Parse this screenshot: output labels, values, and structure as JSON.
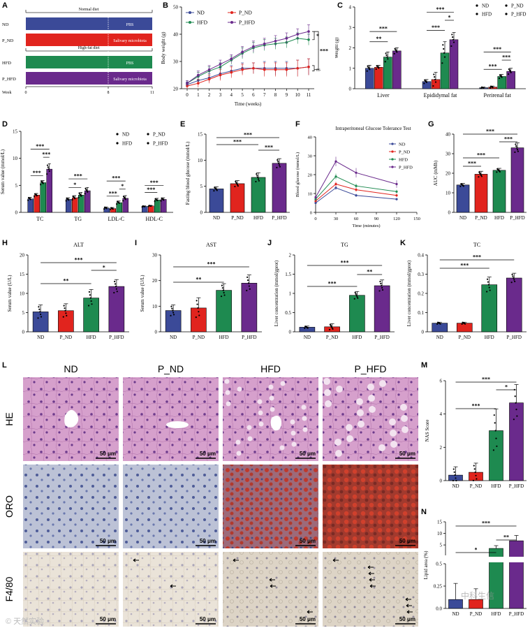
{
  "colors": {
    "ND": "#3B4A98",
    "P_ND": "#E1241E",
    "HFD": "#1E8A50",
    "P_HFD": "#6A2A8C",
    "HE_bg": "#D9A3CF",
    "ORO_bg": "#B7BCD0",
    "F480_bg": "#E9E1D6"
  },
  "groups": [
    "ND",
    "P_ND",
    "HFD",
    "P_HFD"
  ],
  "panelA": {
    "letter": "A",
    "normal_diet": "Normal diet",
    "high_fat_diet": "High-fat diet",
    "rows": [
      {
        "label": "ND",
        "text": "PBS"
      },
      {
        "label": "P_ND",
        "text": "Salivary microbiota"
      },
      {
        "label": "HFD",
        "text": "PBS"
      },
      {
        "label": "P_HFD",
        "text": "Salivary microbiota"
      }
    ],
    "week_label": "Week",
    "week_ticks": [
      "0",
      "8",
      "11"
    ]
  },
  "histology": {
    "letter": "L",
    "columns": [
      "ND",
      "P_ND",
      "HFD",
      "P_HFD"
    ],
    "rows": [
      "HE",
      "ORO",
      "F4/80"
    ],
    "scale_bar": "50 μm"
  },
  "watermarks": [
    "© 天然实验",
    "中科生信"
  ],
  "chart_data": [
    {
      "id": "B",
      "type": "line",
      "ylabel": "Body weight (g)",
      "xlabel": "Time (weeks)",
      "x": [
        0,
        1,
        2,
        3,
        4,
        5,
        6,
        7,
        8,
        9,
        10,
        11
      ],
      "xticks": [
        "0",
        "1",
        "2",
        "3",
        "4",
        "5",
        "6",
        "7",
        "8",
        "9",
        "10",
        "11"
      ],
      "ylim": [
        20,
        50
      ],
      "yticks": [
        20,
        30,
        40,
        50
      ],
      "series": [
        {
          "name": "ND",
          "values": [
            21.5,
            23,
            24,
            25.5,
            26.5,
            27.5,
            27.5,
            27.5,
            27.5,
            27.5,
            27.5,
            28
          ],
          "err": [
            1,
            1.5,
            1.5,
            2,
            2,
            2,
            2,
            2.5,
            2.5,
            2.5,
            3,
            3
          ]
        },
        {
          "name": "P_ND",
          "values": [
            21,
            22,
            23.5,
            25,
            26,
            27,
            27.5,
            27,
            27,
            27,
            27.5,
            28
          ],
          "err": [
            1,
            1.5,
            1.5,
            2,
            2,
            2,
            2,
            2.5,
            2.5,
            2.5,
            3,
            3
          ]
        },
        {
          "name": "HFD",
          "values": [
            22,
            24.5,
            26.5,
            28,
            30.5,
            33,
            35,
            36,
            36.5,
            37,
            38.5,
            38
          ],
          "err": [
            1,
            1.5,
            1.5,
            1.5,
            1.5,
            2,
            2,
            2,
            2,
            2,
            2,
            2
          ]
        },
        {
          "name": "P_HFD",
          "values": [
            22,
            25,
            27,
            29,
            31,
            33.5,
            35.5,
            36.5,
            37.5,
            38.5,
            40,
            41
          ],
          "err": [
            1,
            1.5,
            1.5,
            1.5,
            1.5,
            2,
            2,
            2,
            2,
            2,
            2,
            2.5
          ]
        }
      ],
      "sig": [
        "*",
        "***",
        "ns"
      ]
    },
    {
      "id": "C",
      "type": "bar",
      "ylabel": "Weight (g)",
      "categories": [
        "Liver",
        "Epididymal fat",
        "Perirenal fat"
      ],
      "ylim": [
        0,
        4
      ],
      "yticks": [
        0,
        1,
        2,
        3,
        4
      ],
      "series": [
        {
          "name": "ND",
          "values": [
            1.0,
            0.35,
            0.05
          ],
          "err": [
            0.15,
            0.1,
            0.03
          ]
        },
        {
          "name": "P_ND",
          "values": [
            1.05,
            0.45,
            0.08
          ],
          "err": [
            0.1,
            0.35,
            0.05
          ]
        },
        {
          "name": "HFD",
          "values": [
            1.55,
            1.75,
            0.6
          ],
          "err": [
            0.25,
            0.55,
            0.1
          ]
        },
        {
          "name": "P_HFD",
          "values": [
            1.85,
            2.4,
            0.85
          ],
          "err": [
            0.15,
            0.35,
            0.15
          ]
        }
      ],
      "sig": [
        "***",
        "**",
        "***",
        "***",
        "*",
        "***",
        "***",
        "***"
      ]
    },
    {
      "id": "D",
      "type": "bar",
      "ylabel": "Serum value (mmol/L)",
      "categories": [
        "TC",
        "TG",
        "LDL-C",
        "HDL-C"
      ],
      "ylim": [
        0,
        15
      ],
      "yticks": [
        0,
        5,
        10,
        15
      ],
      "series": [
        {
          "name": "ND",
          "values": [
            2.5,
            2.4,
            0.8,
            1.1
          ],
          "err": [
            0.3,
            0.3,
            0.2,
            0.1
          ]
        },
        {
          "name": "P_ND",
          "values": [
            3.2,
            2.7,
            0.7,
            1.2
          ],
          "err": [
            0.3,
            0.4,
            0.2,
            0.1
          ]
        },
        {
          "name": "HFD",
          "values": [
            5.5,
            3.2,
            1.8,
            2.3
          ],
          "err": [
            0.4,
            0.5,
            0.3,
            0.3
          ]
        },
        {
          "name": "P_HFD",
          "values": [
            8.0,
            4.0,
            2.6,
            2.4
          ],
          "err": [
            1.0,
            0.6,
            0.5,
            0.3
          ]
        }
      ],
      "sig": [
        "***",
        "***",
        "***",
        "***",
        "*",
        "***",
        "***",
        "*",
        "***",
        "***"
      ]
    },
    {
      "id": "E",
      "type": "bar",
      "ylabel": "Fasting blood glucose (mmol/L)",
      "categories": [
        "ND",
        "P_ND",
        "HFD",
        "P_HFD"
      ],
      "ylim": [
        0,
        15
      ],
      "yticks": [
        0,
        5,
        10,
        15
      ],
      "values": [
        4.5,
        5.5,
        6.7,
        9.4
      ],
      "err": [
        0.4,
        0.6,
        0.9,
        0.9
      ],
      "sig": [
        "***",
        "***",
        "***"
      ]
    },
    {
      "id": "F",
      "type": "line",
      "title": "Intraperitoneal Glucose Tolerance Test",
      "ylabel": "Blood glucose (mmol/L)",
      "xlabel": "Time (minutes)",
      "x": [
        0,
        30,
        60,
        120
      ],
      "xlim": [
        0,
        150
      ],
      "xticks": [
        0,
        30,
        60,
        90,
        120,
        150
      ],
      "ylim": [
        0,
        40
      ],
      "yticks": [
        0,
        10,
        20,
        30,
        40
      ],
      "series": [
        {
          "name": "ND",
          "values": [
            5,
            13,
            9,
            7
          ],
          "err": [
            0.5,
            1,
            0.8,
            0.6
          ]
        },
        {
          "name": "P_ND",
          "values": [
            6,
            15,
            12,
            9
          ],
          "err": [
            0.5,
            1.2,
            1,
            0.8
          ]
        },
        {
          "name": "HFD",
          "values": [
            7,
            19,
            14,
            11
          ],
          "err": [
            0.8,
            1.5,
            1.2,
            1
          ]
        },
        {
          "name": "P_HFD",
          "values": [
            8,
            27,
            21,
            15
          ],
          "err": [
            1,
            2.5,
            2.5,
            2
          ]
        }
      ]
    },
    {
      "id": "G",
      "type": "bar",
      "ylabel": "AUC (mMh)",
      "categories": [
        "ND",
        "P_ND",
        "HFD",
        "P_HFD"
      ],
      "ylim": [
        0,
        40
      ],
      "yticks": [
        0,
        10,
        20,
        30,
        40
      ],
      "values": [
        14,
        19.5,
        21.5,
        33
      ],
      "err": [
        0.8,
        1.5,
        1.0,
        2.5
      ],
      "sig": [
        "***",
        "***",
        "***",
        "***"
      ]
    },
    {
      "id": "H",
      "type": "bar",
      "title": "ALT",
      "ylabel": "Serum value (U/L)",
      "categories": [
        "ND",
        "P_ND",
        "HFD",
        "P_HFD"
      ],
      "ylim": [
        0,
        20
      ],
      "yticks": [
        0,
        5,
        10,
        15,
        20
      ],
      "values": [
        5.2,
        5.5,
        8.8,
        11.8
      ],
      "err": [
        1.8,
        1.8,
        2.2,
        1.8
      ],
      "sig": [
        "***",
        "**",
        "*"
      ]
    },
    {
      "id": "I",
      "type": "bar",
      "title": "AST",
      "ylabel": "Serum value (U/L)",
      "categories": [
        "ND",
        "P_ND",
        "HFD",
        "P_HFD"
      ],
      "ylim": [
        0,
        30
      ],
      "yticks": [
        0,
        10,
        20,
        30
      ],
      "values": [
        8.3,
        9.3,
        16.2,
        19.0
      ],
      "err": [
        2.2,
        4.0,
        2.6,
        3.2
      ],
      "sig": [
        "***",
        "**"
      ]
    },
    {
      "id": "J",
      "type": "bar",
      "title": "TG",
      "ylabel": "Liver concentration (mmol/gprot)",
      "categories": [
        "ND",
        "P_ND",
        "HFD",
        "P_HFD"
      ],
      "ylim": [
        0,
        2.0
      ],
      "yticks": [
        0.0,
        0.5,
        1.0,
        1.5,
        2.0
      ],
      "values": [
        0.12,
        0.13,
        0.95,
        1.2
      ],
      "err": [
        0.03,
        0.08,
        0.1,
        0.15
      ],
      "sig": [
        "***",
        "***",
        "**"
      ]
    },
    {
      "id": "K",
      "type": "bar",
      "title": "TC",
      "ylabel": "Liver concentration (mmol/gprot)",
      "categories": [
        "ND",
        "P_ND",
        "HFD",
        "P_HFD"
      ],
      "ylim": [
        0,
        0.4
      ],
      "yticks": [
        0.0,
        0.1,
        0.2,
        0.3,
        0.4
      ],
      "values": [
        0.045,
        0.045,
        0.245,
        0.28
      ],
      "err": [
        0.005,
        0.005,
        0.04,
        0.025
      ],
      "sig": [
        "***",
        "***"
      ]
    },
    {
      "id": "M",
      "type": "bar",
      "ylabel": "NAS Score",
      "categories": [
        "ND",
        "P_ND",
        "HFD",
        "P_HFD"
      ],
      "ylim": [
        0,
        6
      ],
      "yticks": [
        0,
        2,
        4,
        6
      ],
      "values": [
        0.33,
        0.5,
        3.0,
        4.67
      ],
      "err": [
        0.5,
        0.55,
        1.3,
        1.1
      ],
      "sig": [
        "***",
        "***",
        "*"
      ]
    },
    {
      "id": "N",
      "type": "bar",
      "ylabel": "Lipid area (%)",
      "axis_break": true,
      "categories": [
        "ND",
        "P_ND",
        "HFD",
        "P_HFD"
      ],
      "yticks": [
        "0.0",
        "0.25",
        "0.5",
        "5",
        "10",
        "15"
      ],
      "values": [
        0.1,
        0.1,
        3.5,
        6.8
      ],
      "err": [
        0.18,
        0.12,
        1.2,
        2.3
      ],
      "sig": [
        "***",
        "*",
        "**"
      ]
    }
  ]
}
